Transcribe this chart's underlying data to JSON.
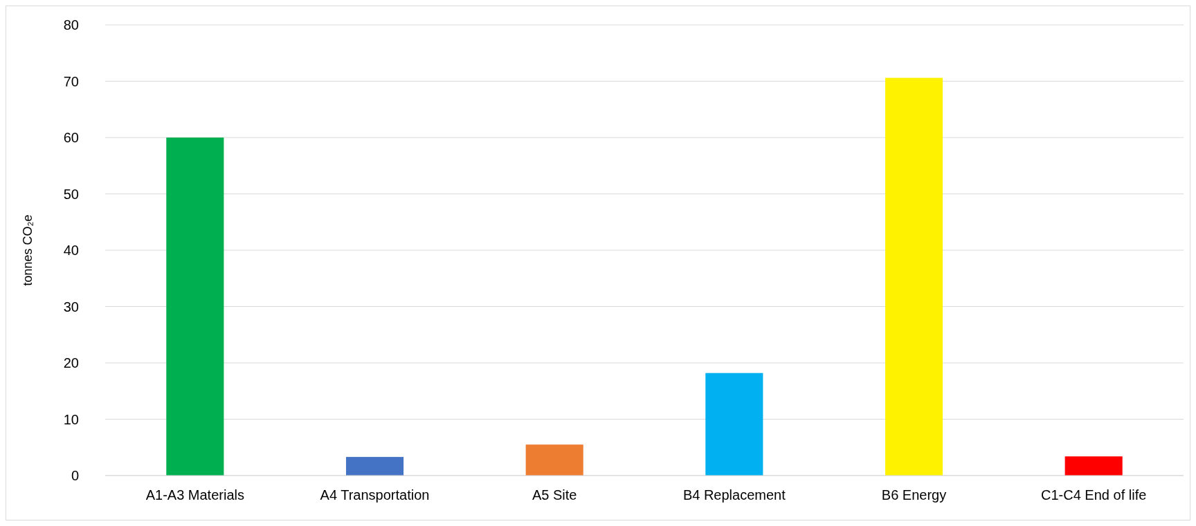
{
  "chart_data": {
    "type": "bar",
    "ylabel": "tonnes CO₂e",
    "categories": [
      "A1-A3 Materials",
      "A4 Transportation",
      "A5 Site",
      "B4 Replacement",
      "B6 Energy",
      "C1-C4 End of life"
    ],
    "values": [
      60,
      3.3,
      5.5,
      18.2,
      70.6,
      3.4
    ],
    "colors": [
      "#00b050",
      "#4472c4",
      "#ed7d31",
      "#00b0f0",
      "#fff200",
      "#ff0000"
    ],
    "ylim": [
      0,
      80
    ],
    "yticks": [
      0,
      10,
      20,
      30,
      40,
      50,
      60,
      70,
      80
    ],
    "grid": "y"
  }
}
